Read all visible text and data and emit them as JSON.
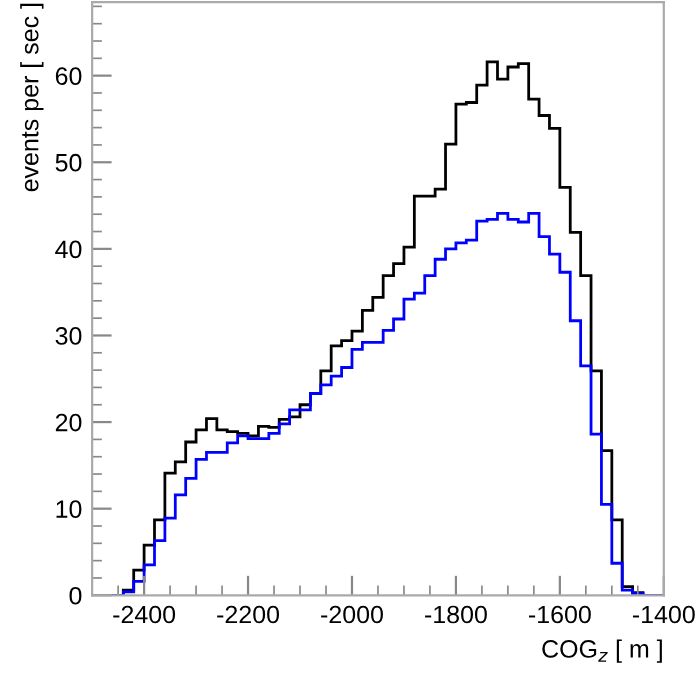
{
  "chart_data": {
    "type": "histogram",
    "xlabel": "COG$_{z}$ [ m ]",
    "ylabel": "events per [ sec ]",
    "bins": [
      -2500,
      -2480,
      -2460,
      -2440,
      -2420,
      -2400,
      -2380,
      -2360,
      -2340,
      -2320,
      -2300,
      -2280,
      -2260,
      -2240,
      -2220,
      -2200,
      -2180,
      -2160,
      -2140,
      -2120,
      -2100,
      -2080,
      -2060,
      -2040,
      -2020,
      -2000,
      -1980,
      -1960,
      -1940,
      -1920,
      -1900,
      -1880,
      -1860,
      -1840,
      -1820,
      -1800,
      -1780,
      -1760,
      -1740,
      -1720,
      -1700,
      -1680,
      -1660,
      -1640,
      -1620,
      -1600,
      -1580,
      -1560,
      -1540,
      -1520,
      -1500,
      -1480,
      -1460,
      -1440,
      -1420,
      -1400
    ],
    "series": [
      {
        "color": "#000000",
        "values": [
          0,
          0,
          0,
          0.6,
          2.9,
          5.8,
          8.7,
          14.1,
          15.4,
          17.7,
          19.1,
          20.4,
          19.1,
          18.9,
          18.7,
          18.4,
          19.5,
          19.4,
          20.3,
          20.6,
          22.0,
          23.3,
          25.9,
          28.8,
          29.4,
          30.5,
          32.9,
          34.4,
          36.9,
          38.3,
          40.2,
          46.1,
          46.1,
          46.9,
          52.1,
          56.7,
          56.9,
          58.9,
          61.6,
          59.6,
          61.0,
          61.4,
          57.3,
          55.4,
          53.9,
          47.1,
          41.9,
          36.9,
          25.9,
          16.7,
          8.7,
          1.0,
          0.3,
          0,
          0
        ]
      },
      {
        "color": "#0000ff",
        "values": [
          0,
          0,
          0,
          0.4,
          1.6,
          3.5,
          6.3,
          8.9,
          11.6,
          13.5,
          15.7,
          16.5,
          16.5,
          17.6,
          18.4,
          18.1,
          18.1,
          18.7,
          19.8,
          21.4,
          21.4,
          23.3,
          24.3,
          25.3,
          26.3,
          28.4,
          29.2,
          29.2,
          30.6,
          31.9,
          34.2,
          34.9,
          36.9,
          38.8,
          40.0,
          40.7,
          41.0,
          43.2,
          43.4,
          44.1,
          43.4,
          43.1,
          44.1,
          41.4,
          39.4,
          37.3,
          31.7,
          26.5,
          18.6,
          10.5,
          3.7,
          0.6,
          0.2,
          0,
          0
        ]
      }
    ],
    "xlim": [
      -2500,
      -1400
    ],
    "xticks": [
      -2400,
      -2200,
      -2000,
      -1800,
      -1600,
      -1400
    ],
    "ylim": [
      0,
      68.5
    ],
    "yticks": [
      0,
      10,
      20,
      30,
      40,
      50,
      60
    ],
    "grid": false,
    "legend": false
  }
}
